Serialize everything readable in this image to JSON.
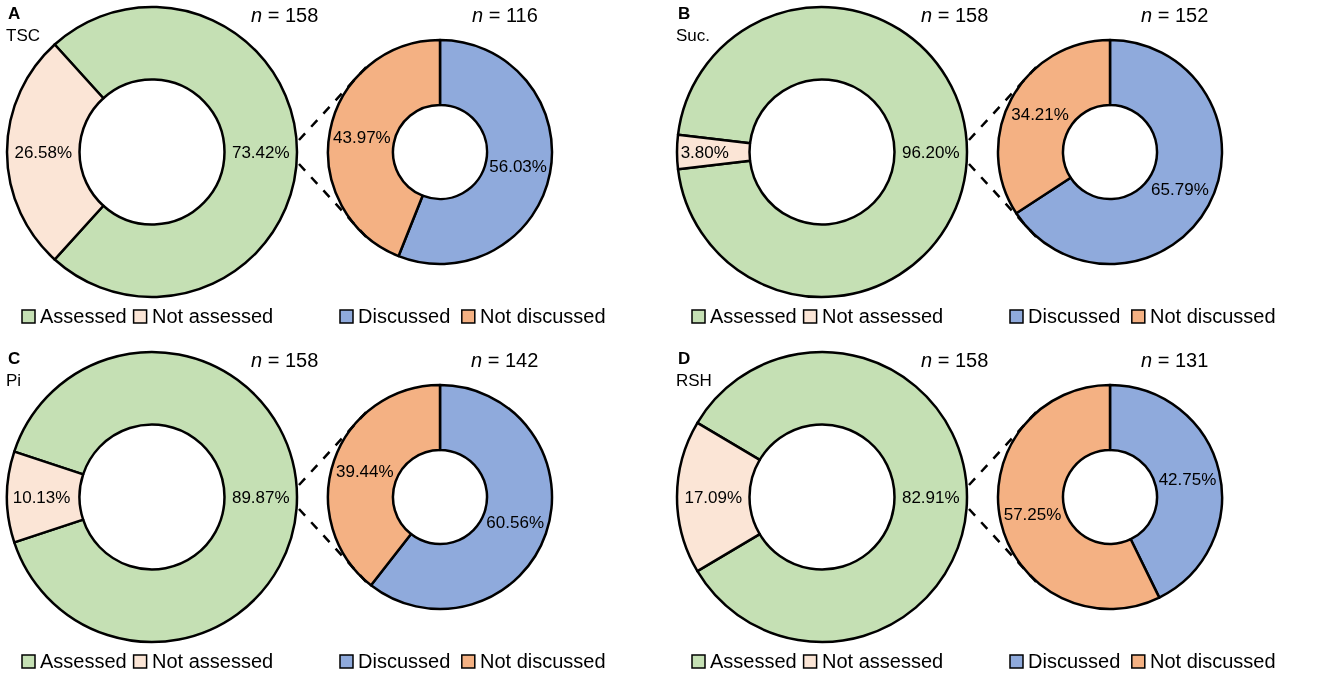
{
  "chart_data": [
    {
      "type": "donut",
      "title": "A",
      "subtitle": "TSC",
      "annotations": [
        "n = 158"
      ],
      "categories": [
        "Assessed",
        "Not assessed"
      ],
      "values": [
        73.42,
        26.58
      ],
      "colors": [
        "#c5e0b4",
        "#fbe5d6"
      ],
      "value_labels": [
        "73.42%",
        "26.58%"
      ],
      "legend": "bottom"
    },
    {
      "type": "donut",
      "annotations": [
        "n = 116"
      ],
      "categories": [
        "Discussed",
        "Not discussed"
      ],
      "values": [
        56.03,
        43.97
      ],
      "colors": [
        "#8faadc",
        "#f4b183"
      ],
      "value_labels": [
        "56.03%",
        "43.97%"
      ],
      "legend": "bottom"
    },
    {
      "type": "donut",
      "title": "B",
      "subtitle": "Suc.",
      "annotations": [
        "n = 158"
      ],
      "categories": [
        "Assessed",
        "Not assessed"
      ],
      "values": [
        96.2,
        3.8
      ],
      "colors": [
        "#c5e0b4",
        "#fbe5d6"
      ],
      "value_labels": [
        "96.20%",
        "3.80%"
      ],
      "legend": "bottom"
    },
    {
      "type": "donut",
      "annotations": [
        "n = 152"
      ],
      "categories": [
        "Discussed",
        "Not discussed"
      ],
      "values": [
        65.79,
        34.21
      ],
      "colors": [
        "#8faadc",
        "#f4b183"
      ],
      "value_labels": [
        "65.79%",
        "34.21%"
      ],
      "legend": "bottom"
    },
    {
      "type": "donut",
      "title": "C",
      "subtitle": "Pi",
      "annotations": [
        "n = 158"
      ],
      "categories": [
        "Assessed",
        "Not assessed"
      ],
      "values": [
        89.87,
        10.13
      ],
      "colors": [
        "#c5e0b4",
        "#fbe5d6"
      ],
      "value_labels": [
        "89.87%",
        "10.13%"
      ],
      "legend": "bottom"
    },
    {
      "type": "donut",
      "annotations": [
        "n = 142"
      ],
      "categories": [
        "Discussed",
        "Not discussed"
      ],
      "values": [
        60.56,
        39.44
      ],
      "colors": [
        "#8faadc",
        "#f4b183"
      ],
      "value_labels": [
        "60.56%",
        "39.44%"
      ],
      "legend": "bottom"
    },
    {
      "type": "donut",
      "title": "D",
      "subtitle": "RSH",
      "annotations": [
        "n = 158"
      ],
      "categories": [
        "Assessed",
        "Not assessed"
      ],
      "values": [
        82.91,
        17.09
      ],
      "colors": [
        "#c5e0b4",
        "#fbe5d6"
      ],
      "value_labels": [
        "82.91%",
        "17.09%"
      ],
      "legend": "bottom"
    },
    {
      "type": "donut",
      "annotations": [
        "n = 131"
      ],
      "categories": [
        "Discussed",
        "Not discussed"
      ],
      "values": [
        42.75,
        57.25
      ],
      "colors": [
        "#8faadc",
        "#f4b183"
      ],
      "value_labels": [
        "42.75%",
        "57.25%"
      ],
      "legend": "bottom"
    }
  ]
}
